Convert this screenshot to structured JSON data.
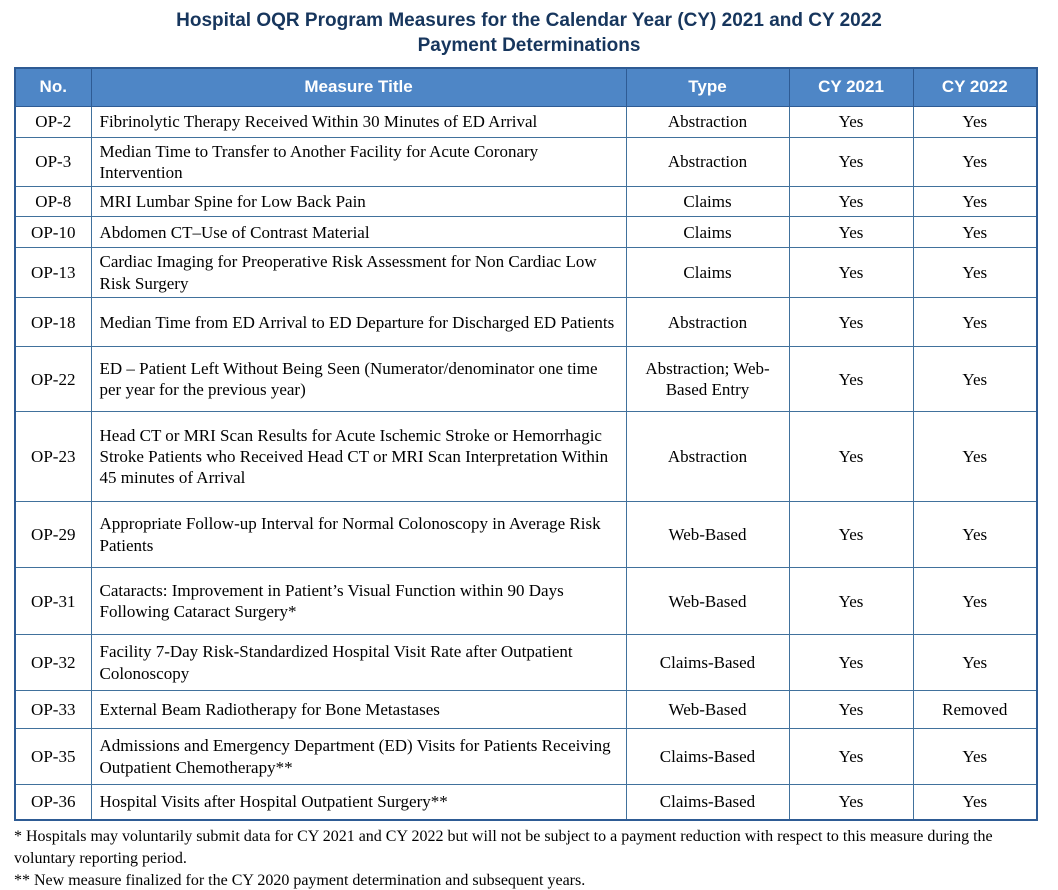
{
  "title": {
    "line1": "Hospital OQR Program Measures for the Calendar Year (CY) 2021 and CY 2022",
    "line2": "Payment Determinations"
  },
  "colors": {
    "title_text": "#17365D",
    "header_bg": "#4E86C6",
    "header_text": "#FFFFFF",
    "border": "#41719C",
    "body_text": "#000000"
  },
  "table": {
    "headers": {
      "no": "No.",
      "measure": "Measure Title",
      "type": "Type",
      "cy2021": "CY 2021",
      "cy2022": "CY 2022"
    },
    "rows": [
      {
        "no": "OP-2",
        "measure": "Fibrinolytic Therapy Received Within 30 Minutes of ED Arrival",
        "type": "Abstraction",
        "cy2021": "Yes",
        "cy2022": "Yes"
      },
      {
        "no": "OP-3",
        "measure": "Median Time to Transfer to Another Facility for Acute Coronary Intervention",
        "type": "Abstraction",
        "cy2021": "Yes",
        "cy2022": "Yes"
      },
      {
        "no": "OP-8",
        "measure": "MRI Lumbar Spine for Low Back Pain",
        "type": "Claims",
        "cy2021": "Yes",
        "cy2022": "Yes"
      },
      {
        "no": "OP-10",
        "measure": "Abdomen CT–Use of Contrast Material",
        "type": "Claims",
        "cy2021": "Yes",
        "cy2022": "Yes"
      },
      {
        "no": "OP-13",
        "measure": "Cardiac Imaging for Preoperative Risk Assessment for Non Cardiac Low Risk Surgery",
        "type": "Claims",
        "cy2021": "Yes",
        "cy2022": "Yes"
      },
      {
        "no": "OP-18",
        "measure": "Median Time from ED Arrival to ED Departure for Discharged ED Patients",
        "type": "Abstraction",
        "cy2021": "Yes",
        "cy2022": "Yes"
      },
      {
        "no": "OP-22",
        "measure": "ED – Patient Left Without Being Seen (Numerator/denominator one time per year for the previous year)",
        "type": "Abstraction; Web-Based Entry",
        "cy2021": "Yes",
        "cy2022": "Yes"
      },
      {
        "no": "OP-23",
        "measure": "Head CT or MRI Scan Results for Acute Ischemic Stroke or Hemorrhagic Stroke Patients who Received Head CT or MRI Scan Interpretation Within 45 minutes of Arrival",
        "type": "Abstraction",
        "cy2021": "Yes",
        "cy2022": "Yes"
      },
      {
        "no": "OP-29",
        "measure": "Appropriate Follow-up Interval for Normal Colonoscopy in Average Risk Patients",
        "type": "Web-Based",
        "cy2021": "Yes",
        "cy2022": "Yes"
      },
      {
        "no": "OP-31",
        "measure": "Cataracts: Improvement in Patient’s Visual Function within 90 Days Following Cataract Surgery*",
        "type": "Web-Based",
        "cy2021": "Yes",
        "cy2022": "Yes"
      },
      {
        "no": "OP-32",
        "measure": "Facility 7-Day Risk-Standardized Hospital Visit Rate after Outpatient Colonoscopy",
        "type": "Claims-Based",
        "cy2021": "Yes",
        "cy2022": "Yes"
      },
      {
        "no": "OP-33",
        "measure": "External Beam Radiotherapy for Bone Metastases",
        "type": "Web-Based",
        "cy2021": "Yes",
        "cy2022": "Removed"
      },
      {
        "no": "OP-35",
        "measure": "Admissions and Emergency Department (ED) Visits for Patients Receiving Outpatient Chemotherapy**",
        "type": "Claims-Based",
        "cy2021": "Yes",
        "cy2022": "Yes"
      },
      {
        "no": "OP-36",
        "measure": "Hospital Visits after Hospital Outpatient Surgery**",
        "type": "Claims-Based",
        "cy2021": "Yes",
        "cy2022": "Yes"
      }
    ]
  },
  "footnotes": [
    "* Hospitals may voluntarily submit data for CY 2021 and CY 2022 but will not be subject to a payment reduction with respect to this measure during the voluntary reporting period.",
    "** New measure finalized for the CY 2020 payment determination and subsequent years."
  ]
}
